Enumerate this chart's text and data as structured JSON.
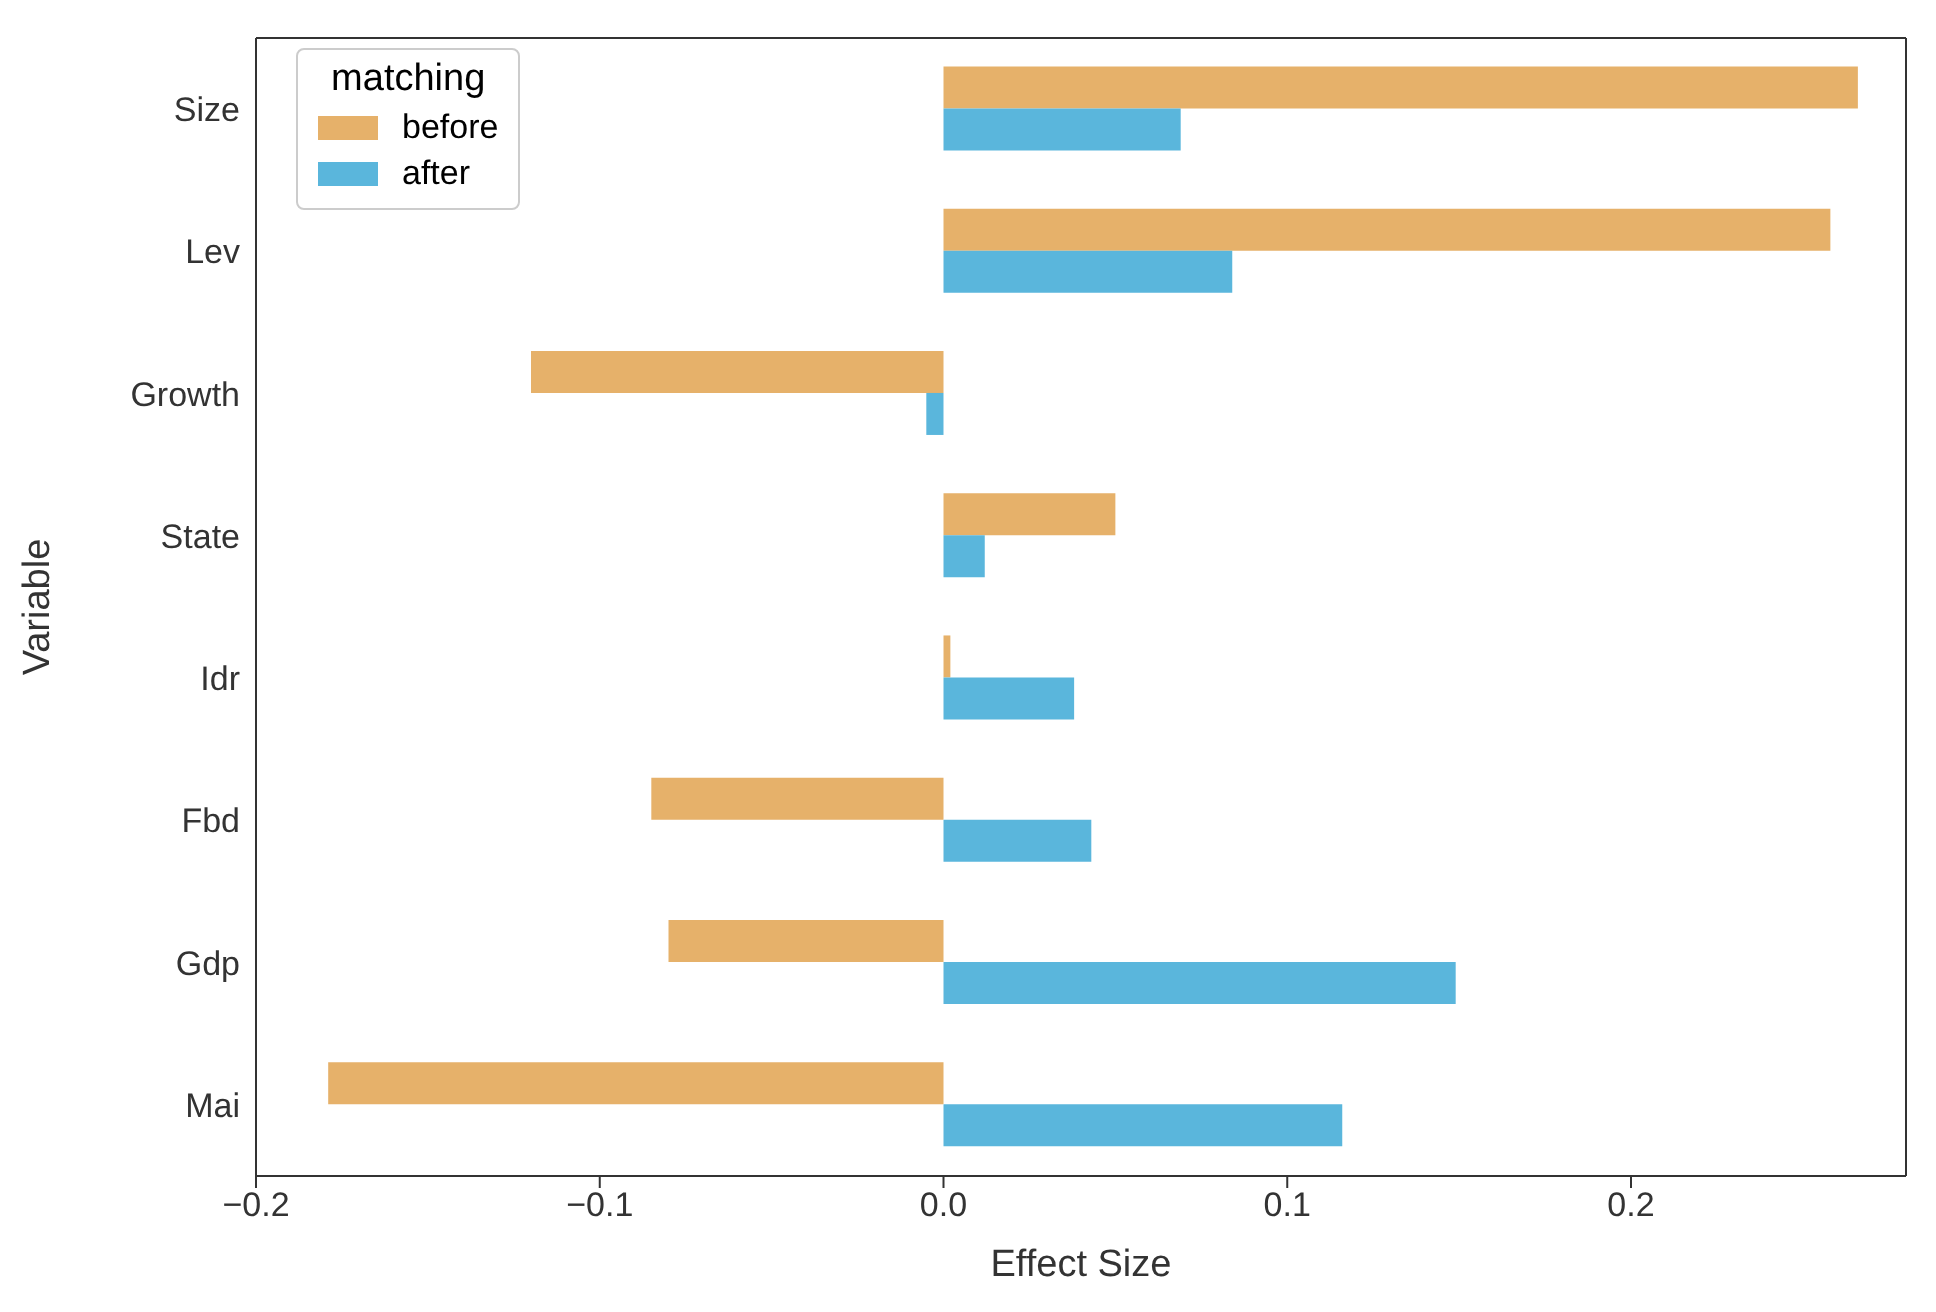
{
  "chart_data": {
    "type": "bar",
    "orientation": "horizontal",
    "xlabel": "Effect Size",
    "ylabel": "Variable",
    "legend_title": "matching",
    "legend": "top left",
    "grid": false,
    "categories": [
      "Size",
      "Lev",
      "Growth",
      "State",
      "Idr",
      "Fbd",
      "Gdp",
      "Mai"
    ],
    "series": [
      {
        "name": "before",
        "color": "#e6b16a",
        "values": [
          0.266,
          0.258,
          -0.12,
          0.05,
          0.002,
          -0.085,
          -0.08,
          -0.179
        ]
      },
      {
        "name": "after",
        "color": "#5ab6dc",
        "values": [
          0.069,
          0.084,
          -0.005,
          0.012,
          0.038,
          0.043,
          0.149,
          0.116
        ]
      }
    ],
    "xlim": [
      -0.2,
      0.28
    ],
    "xticks": [
      {
        "value": -0.2,
        "label": "−0.2"
      },
      {
        "value": -0.1,
        "label": "−0.1"
      },
      {
        "value": 0,
        "label": "0.0"
      },
      {
        "value": 0.1,
        "label": "0.1"
      },
      {
        "value": 0.2,
        "label": "0.2"
      }
    ]
  }
}
